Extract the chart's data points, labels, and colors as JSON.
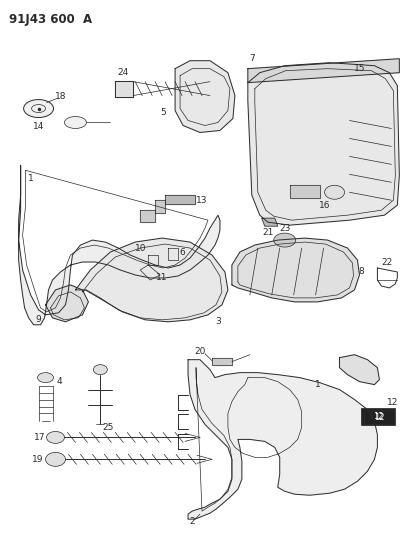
{
  "title": "91J43 600  A",
  "bg_color": "#ffffff",
  "line_color": "#2a2a2a",
  "label_fontsize": 6.5,
  "title_fontsize": 8.5
}
